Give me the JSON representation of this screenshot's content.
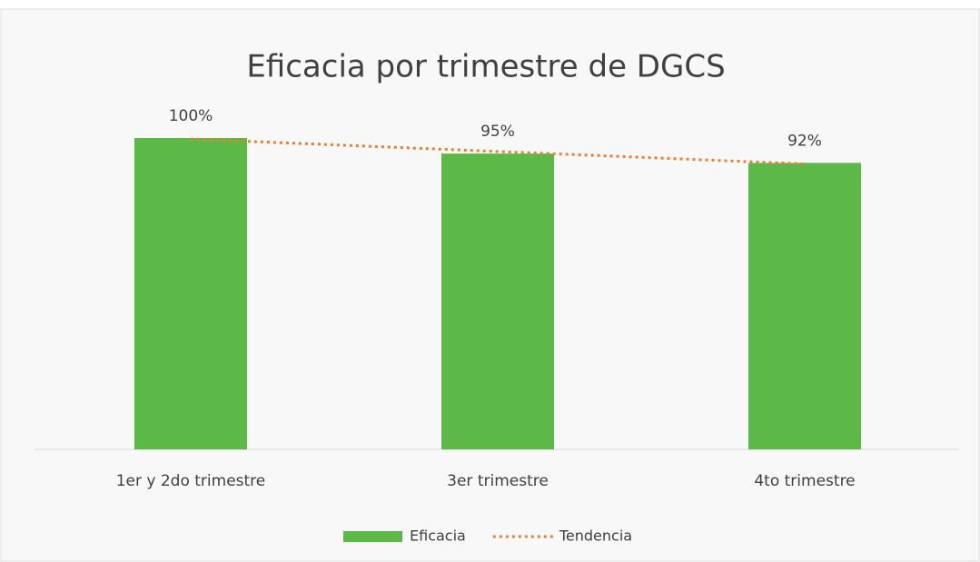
{
  "chart_data": {
    "type": "bar",
    "title": "Eficacia por trimestre de DGCS",
    "categories": [
      "1er y 2do trimestre",
      "3er trimestre",
      "4to trimestre"
    ],
    "series": [
      {
        "name": "Eficacia",
        "color": "#5cb947",
        "values": [
          100,
          95,
          92
        ],
        "value_labels": [
          "100%",
          "95%",
          "92%"
        ]
      },
      {
        "name": "Tendencia",
        "color": "#ed7d31",
        "type": "line",
        "style": "dotted",
        "values": [
          99.67,
          95.67,
          91.67
        ]
      }
    ],
    "ylim": [
      0,
      100
    ],
    "legend": "bottom"
  }
}
